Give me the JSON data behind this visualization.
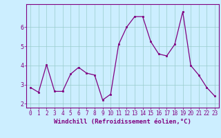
{
  "x": [
    0,
    1,
    2,
    3,
    4,
    5,
    6,
    7,
    8,
    9,
    10,
    11,
    12,
    13,
    14,
    15,
    16,
    17,
    18,
    19,
    20,
    21,
    22,
    23
  ],
  "y": [
    2.85,
    2.6,
    4.05,
    2.65,
    2.65,
    3.55,
    3.9,
    3.6,
    3.5,
    2.2,
    2.5,
    5.1,
    6.0,
    6.55,
    6.55,
    5.25,
    4.6,
    4.5,
    5.1,
    6.8,
    4.0,
    3.5,
    2.85,
    2.4
  ],
  "line_color": "#800080",
  "marker_color": "#800080",
  "bg_color": "#cceeff",
  "grid_color": "#99cccc",
  "xlabel": "Windchill (Refroidissement éolien,°C)",
  "xlim": [
    -0.5,
    23.5
  ],
  "ylim": [
    1.8,
    7.2
  ],
  "yticks": [
    2,
    3,
    4,
    5,
    6
  ],
  "xticks": [
    0,
    1,
    2,
    3,
    4,
    5,
    6,
    7,
    8,
    9,
    10,
    11,
    12,
    13,
    14,
    15,
    16,
    17,
    18,
    19,
    20,
    21,
    22,
    23
  ],
  "font_color": "#800080",
  "axis_color": "#800080",
  "tick_fontsize": 5.5,
  "xlabel_fontsize": 6.5
}
